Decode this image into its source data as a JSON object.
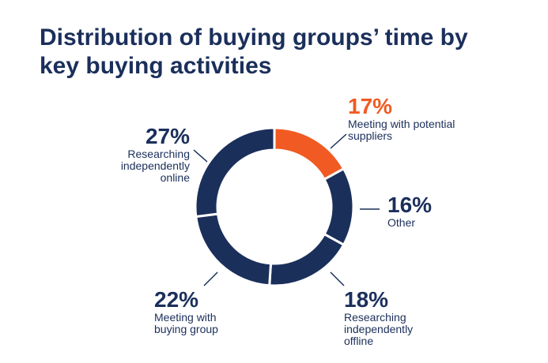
{
  "chart_data": {
    "type": "pie",
    "title": "Distribution of buying groups’ time by key buying activities",
    "categories": [
      "Meeting with potential suppliers",
      "Other",
      "Researching independently offline",
      "Meeting with buying group",
      "Researching independently online"
    ],
    "values": [
      17,
      16,
      18,
      22,
      27
    ],
    "value_labels": [
      "17%",
      "16%",
      "18%",
      "22%",
      "27%"
    ],
    "colors": [
      "#f15a22",
      "#1b2f5b",
      "#1b2f5b",
      "#1b2f5b",
      "#1b2f5b"
    ]
  }
}
